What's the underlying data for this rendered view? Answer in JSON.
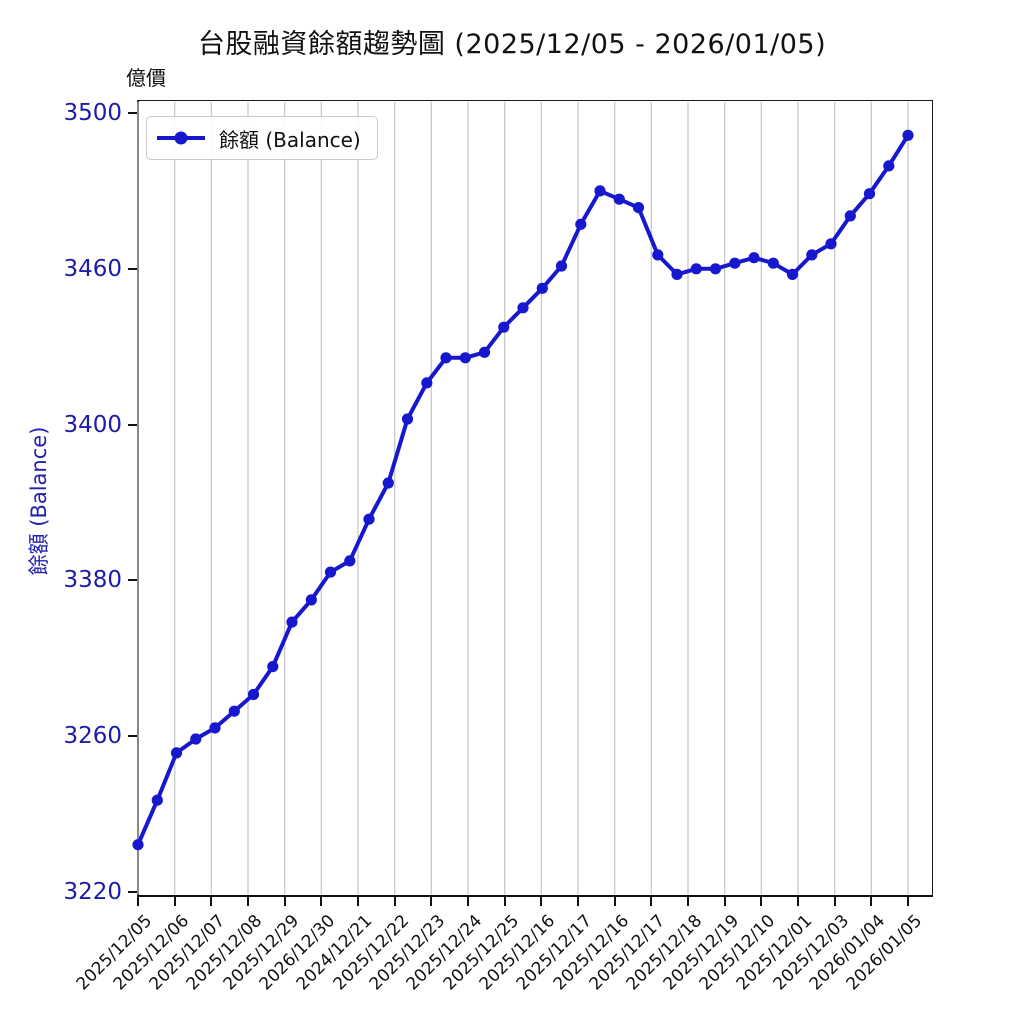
{
  "title": "台股融資餘額趨勢圖 (2025/12/05 - 2026/01/05)",
  "unit_label": "億價",
  "y_axis_title": "餘額 (Balance)",
  "legend": {
    "label": "餘額 (Balance)"
  },
  "colors": {
    "line": "#1717cd",
    "marker": "#1717cd",
    "y_tick_text": "#1c1caa",
    "x_tick_text": "#111111",
    "grid": "#c9c9c9",
    "axis": "#111111"
  },
  "chart_data": {
    "type": "line",
    "title": "台股融資餘額趨勢圖 (2025/12/05 - 2026/01/05)",
    "series": [
      {
        "name": "餘額 (Balance)",
        "values": [
          3237,
          3253,
          3270,
          3275,
          3279,
          3285,
          3291,
          3301,
          3317,
          3325,
          3335,
          3339,
          3354,
          3367,
          3390,
          3403,
          3412,
          3412,
          3414,
          3423,
          3430,
          3437,
          3445,
          3460,
          3472,
          3469,
          3466,
          3449,
          3442,
          3444,
          3444,
          3446,
          3448,
          3446,
          3442,
          3449,
          3453,
          3463,
          3471,
          3481,
          3492
        ]
      }
    ],
    "x_tick_labels": [
      "2025/12/05",
      "2025/12/06",
      "2025/12/07",
      "2025/12/08",
      "2025/12/29",
      "2026/12/30",
      "2024/12/21",
      "2025/12/22",
      "2025/12/23",
      "2025/12/24",
      "2025/12/25",
      "2025/12/16",
      "2025/12/17",
      "2025/12/16",
      "2025/12/17",
      "2025/12/18",
      "2025/12/19",
      "2025/12/10",
      "2025/12/01",
      "2025/12/03",
      "2026/01/04",
      "2026/01/05"
    ],
    "y_tick_labels": [
      "3500",
      "3460",
      "3400",
      "3380",
      "3260",
      "3220"
    ],
    "ylim": [
      3220,
      3500
    ],
    "ylabel": "餘額 (Balance)",
    "xlabel": "",
    "grid": "vertical-only",
    "legend_position": "upper-left",
    "marker": "circle",
    "line_width": 4
  }
}
